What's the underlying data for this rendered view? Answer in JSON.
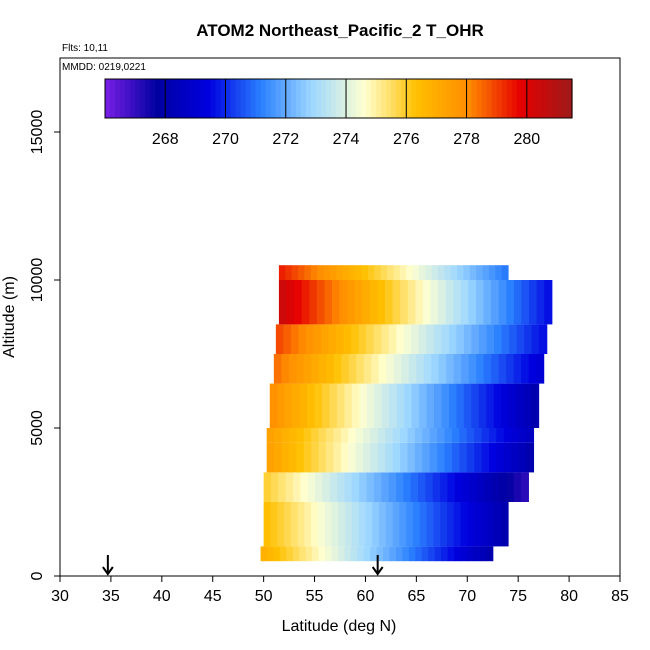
{
  "chart_data": {
    "type": "heatmap",
    "title": "ATOM2 Northeast_Pacific_2 T_OHR",
    "annotations": [
      "Flts: 10,11",
      "MMDD: 0219,0221"
    ],
    "xlabel": "Latitude (deg N)",
    "ylabel": "Altitude (m)",
    "xlim": [
      30,
      85
    ],
    "ylim": [
      0,
      17500
    ],
    "x_ticks": [
      "30",
      "35",
      "40",
      "45",
      "50",
      "55",
      "60",
      "65",
      "70",
      "75",
      "80",
      "85"
    ],
    "y_ticks": [
      "0",
      "5000",
      "10000",
      "15000"
    ],
    "colorbar": {
      "range": [
        266.0,
        281.5
      ],
      "tick_labels": [
        "268",
        "270",
        "272",
        "274",
        "276",
        "278",
        "280"
      ],
      "colors": [
        "#7a1fe6",
        "#0000a0",
        "#0000e0",
        "#2a7fff",
        "#9fd8ff",
        "#ffffd0",
        "#ffc000",
        "#ff8c00",
        "#e60000",
        "#9e1a1a"
      ]
    },
    "markers": [
      {
        "latitude": 34.7,
        "symbol": "arrow"
      },
      {
        "latitude": 61.2,
        "symbol": "arrow"
      }
    ],
    "profiles": [
      {
        "alt_bottom": 500,
        "alt_top": 1000,
        "lat_start": 49.7,
        "lat_end": 72.5,
        "temp_start": 277.0,
        "temp_end": 268.0
      },
      {
        "alt_bottom": 1000,
        "alt_top": 2500,
        "lat_start": 50.0,
        "lat_end": 74.0,
        "temp_start": 276.5,
        "temp_end": 268.0
      },
      {
        "alt_bottom": 2500,
        "alt_top": 3500,
        "lat_start": 50.0,
        "lat_end": 76.0,
        "temp_start": 276.0,
        "temp_end": 267.0
      },
      {
        "alt_bottom": 3500,
        "alt_top": 4500,
        "lat_start": 50.3,
        "lat_end": 76.5,
        "temp_start": 277.5,
        "temp_end": 268.0
      },
      {
        "alt_bottom": 4500,
        "alt_top": 5000,
        "lat_start": 50.3,
        "lat_end": 76.5,
        "temp_start": 277.5,
        "temp_end": 268.5
      },
      {
        "alt_bottom": 5000,
        "alt_top": 6500,
        "lat_start": 50.6,
        "lat_end": 77.0,
        "temp_start": 278.0,
        "temp_end": 268.0
      },
      {
        "alt_bottom": 6500,
        "alt_top": 7500,
        "lat_start": 51.0,
        "lat_end": 77.5,
        "temp_start": 278.5,
        "temp_end": 269.0
      },
      {
        "alt_bottom": 7500,
        "alt_top": 8500,
        "lat_start": 51.2,
        "lat_end": 77.8,
        "temp_start": 279.0,
        "temp_end": 269.5
      },
      {
        "alt_bottom": 8500,
        "alt_top": 10000,
        "lat_start": 51.5,
        "lat_end": 78.3,
        "temp_start": 280.5,
        "temp_end": 269.5
      },
      {
        "alt_bottom": 10000,
        "alt_top": 10500,
        "lat_start": 51.5,
        "lat_end": 74.0,
        "temp_start": 279.5,
        "temp_end": 271.0
      }
    ]
  }
}
